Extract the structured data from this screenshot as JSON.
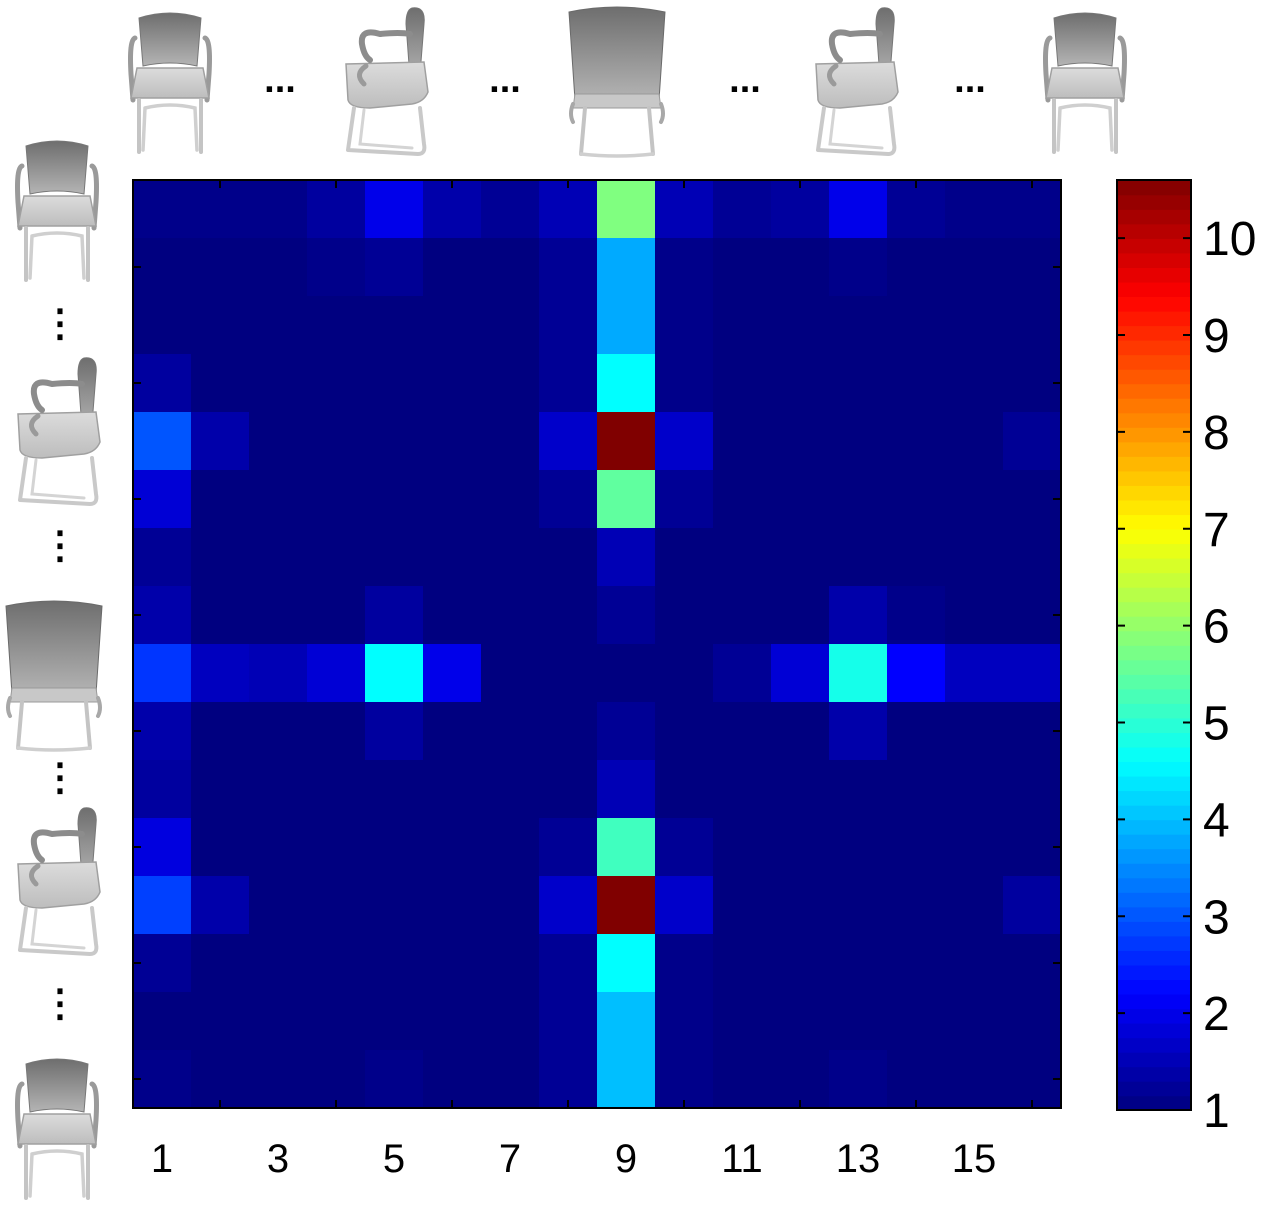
{
  "chart_data": {
    "type": "heatmap",
    "title": "",
    "xlabel": "",
    "ylabel": "",
    "x_tick_labels": [
      "1",
      "3",
      "5",
      "7",
      "9",
      "11",
      "13",
      "15"
    ],
    "x_tick_positions": [
      1,
      3,
      5,
      7,
      9,
      11,
      13,
      15
    ],
    "n_cols": 16,
    "n_rows": 16,
    "colormap": "jet",
    "colorbar": {
      "range": [
        1,
        10.6
      ],
      "tick_labels": [
        "1",
        "2",
        "3",
        "4",
        "5",
        "6",
        "7",
        "8",
        "9",
        "10"
      ],
      "tick_values": [
        1,
        2,
        3,
        4,
        5,
        6,
        7,
        8,
        9,
        10
      ]
    },
    "top_axis_items": [
      "chair-front-icon",
      "…",
      "chair-side-icon",
      "…",
      "chair-back-icon",
      "…",
      "chair-side-icon",
      "…",
      "chair-front-icon"
    ],
    "left_axis_items": [
      "chair-front-icon",
      "⋮",
      "chair-side-icon",
      "⋮",
      "chair-back-icon",
      "⋮",
      "chair-side-icon",
      "⋮",
      "chair-front-icon"
    ],
    "top_ellipsis": "...",
    "left_ellipsis": "⋮",
    "values": [
      [
        1.1,
        1.1,
        1.1,
        1.3,
        2.0,
        1.4,
        1.2,
        1.5,
        5.8,
        1.5,
        1.2,
        1.3,
        2.0,
        1.2,
        1.1,
        1.1
      ],
      [
        1.0,
        1.0,
        1.0,
        1.1,
        1.2,
        1.0,
        1.0,
        1.2,
        3.8,
        1.1,
        1.0,
        1.0,
        1.1,
        1.0,
        1.0,
        1.0
      ],
      [
        1.0,
        1.0,
        1.0,
        1.0,
        1.0,
        1.0,
        1.0,
        1.2,
        3.8,
        1.1,
        1.0,
        1.0,
        1.0,
        1.0,
        1.0,
        1.0
      ],
      [
        1.3,
        1.0,
        1.0,
        1.0,
        1.0,
        1.0,
        1.0,
        1.2,
        4.6,
        1.1,
        1.0,
        1.0,
        1.0,
        1.0,
        1.0,
        1.0
      ],
      [
        3.0,
        1.4,
        1.0,
        1.0,
        1.0,
        1.0,
        1.0,
        1.7,
        10.6,
        1.7,
        1.0,
        1.0,
        1.0,
        1.0,
        1.0,
        1.2
      ],
      [
        1.8,
        1.0,
        1.0,
        1.0,
        1.0,
        1.0,
        1.0,
        1.2,
        5.5,
        1.2,
        1.0,
        1.0,
        1.0,
        1.0,
        1.0,
        1.0
      ],
      [
        1.2,
        1.0,
        1.0,
        1.0,
        1.0,
        1.0,
        1.0,
        1.0,
        1.5,
        1.0,
        1.0,
        1.0,
        1.0,
        1.0,
        1.0,
        1.0
      ],
      [
        1.4,
        1.0,
        1.0,
        1.0,
        1.3,
        1.0,
        1.0,
        1.0,
        1.2,
        1.0,
        1.0,
        1.0,
        1.4,
        1.1,
        1.0,
        1.0
      ],
      [
        2.7,
        1.6,
        1.5,
        1.8,
        4.6,
        2.0,
        1.0,
        1.0,
        1.0,
        1.0,
        1.2,
        1.8,
        4.8,
        2.2,
        1.6,
        1.6
      ],
      [
        1.4,
        1.0,
        1.0,
        1.0,
        1.3,
        1.0,
        1.0,
        1.0,
        1.2,
        1.0,
        1.0,
        1.0,
        1.4,
        1.0,
        1.0,
        1.0
      ],
      [
        1.3,
        1.0,
        1.0,
        1.0,
        1.0,
        1.0,
        1.0,
        1.0,
        1.5,
        1.0,
        1.0,
        1.0,
        1.0,
        1.0,
        1.0,
        1.0
      ],
      [
        1.9,
        1.0,
        1.0,
        1.0,
        1.0,
        1.0,
        1.0,
        1.2,
        5.2,
        1.2,
        1.0,
        1.0,
        1.0,
        1.0,
        1.0,
        1.0
      ],
      [
        2.8,
        1.4,
        1.0,
        1.0,
        1.0,
        1.0,
        1.0,
        1.7,
        10.6,
        1.7,
        1.0,
        1.0,
        1.0,
        1.0,
        1.0,
        1.3
      ],
      [
        1.2,
        1.0,
        1.0,
        1.0,
        1.0,
        1.0,
        1.0,
        1.2,
        4.6,
        1.1,
        1.0,
        1.0,
        1.0,
        1.0,
        1.0,
        1.0
      ],
      [
        1.0,
        1.0,
        1.0,
        1.0,
        1.0,
        1.0,
        1.0,
        1.2,
        4.0,
        1.1,
        1.0,
        1.0,
        1.0,
        1.0,
        1.0,
        1.0
      ],
      [
        1.1,
        1.0,
        1.0,
        1.0,
        1.1,
        1.0,
        1.0,
        1.2,
        4.0,
        1.1,
        1.0,
        1.0,
        1.1,
        1.0,
        1.0,
        1.0
      ]
    ]
  }
}
